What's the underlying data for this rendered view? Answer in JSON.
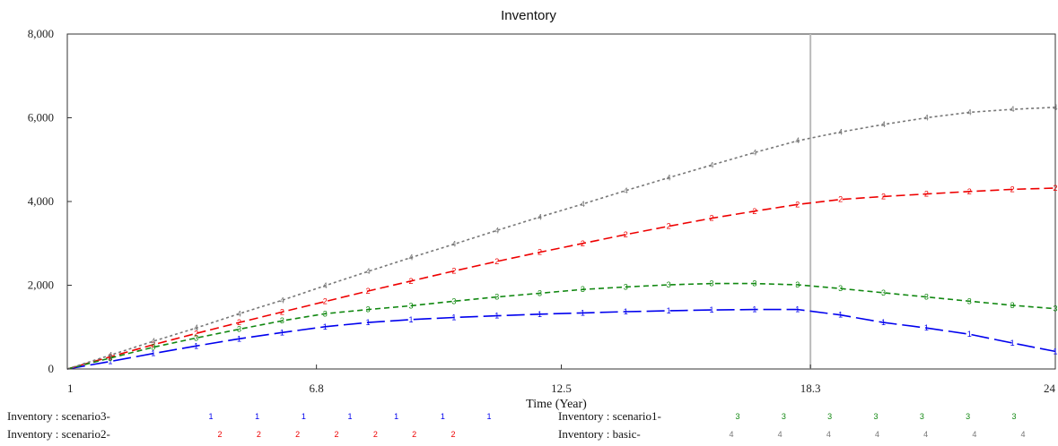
{
  "chart_data": {
    "type": "line",
    "title": "Inventory",
    "xlabel": "Time (Year)",
    "ylabel": "",
    "xlim": [
      1,
      24
    ],
    "ylim": [
      0,
      8000
    ],
    "x_ticks": [
      1,
      6.8,
      12.5,
      18.3,
      24
    ],
    "x_tick_labels": [
      "1",
      "6.8",
      "12.5",
      "18.3",
      "24"
    ],
    "y_ticks": [
      0,
      2000,
      4000,
      6000,
      8000
    ],
    "y_tick_labels": [
      "0",
      "2,000",
      "4,000",
      "6,000",
      "8,000"
    ],
    "grid": false,
    "reference_line_x": 18.3,
    "legend_position": "bottom",
    "x": [
      1,
      2,
      3,
      4,
      5,
      6,
      7,
      8,
      9,
      10,
      11,
      12,
      13,
      14,
      15,
      16,
      17,
      18,
      19,
      20,
      21,
      22,
      23,
      24
    ],
    "series": [
      {
        "name": "Inventory : scenario3-",
        "marker": "1",
        "color": "#0000ee",
        "dash": "20 6",
        "values": [
          0,
          180,
          370,
          550,
          720,
          870,
          1010,
          1110,
          1180,
          1230,
          1270,
          1310,
          1340,
          1370,
          1390,
          1410,
          1420,
          1420,
          1290,
          1110,
          980,
          830,
          620,
          420
        ]
      },
      {
        "name": "Inventory : scenario2-",
        "marker": "2",
        "color": "#ee0000",
        "dash": "10 5",
        "values": [
          0,
          290,
          580,
          850,
          1110,
          1360,
          1610,
          1860,
          2100,
          2340,
          2570,
          2790,
          3000,
          3210,
          3410,
          3600,
          3770,
          3930,
          4050,
          4120,
          4180,
          4240,
          4290,
          4320
        ]
      },
      {
        "name": "Inventory : scenario1-",
        "marker": "3",
        "color": "#118811",
        "dash": "6 4",
        "values": [
          0,
          260,
          520,
          740,
          950,
          1150,
          1320,
          1420,
          1510,
          1620,
          1720,
          1810,
          1900,
          1960,
          2010,
          2040,
          2040,
          2010,
          1920,
          1820,
          1720,
          1620,
          1520,
          1440
        ]
      },
      {
        "name": "Inventory : basic-",
        "marker": "4",
        "color": "#777777",
        "dash": "3 3",
        "values": [
          0,
          330,
          660,
          980,
          1320,
          1640,
          1990,
          2330,
          2660,
          2980,
          3310,
          3630,
          3940,
          4260,
          4570,
          4870,
          5170,
          5450,
          5660,
          5840,
          6000,
          6130,
          6200,
          6250
        ]
      }
    ]
  }
}
